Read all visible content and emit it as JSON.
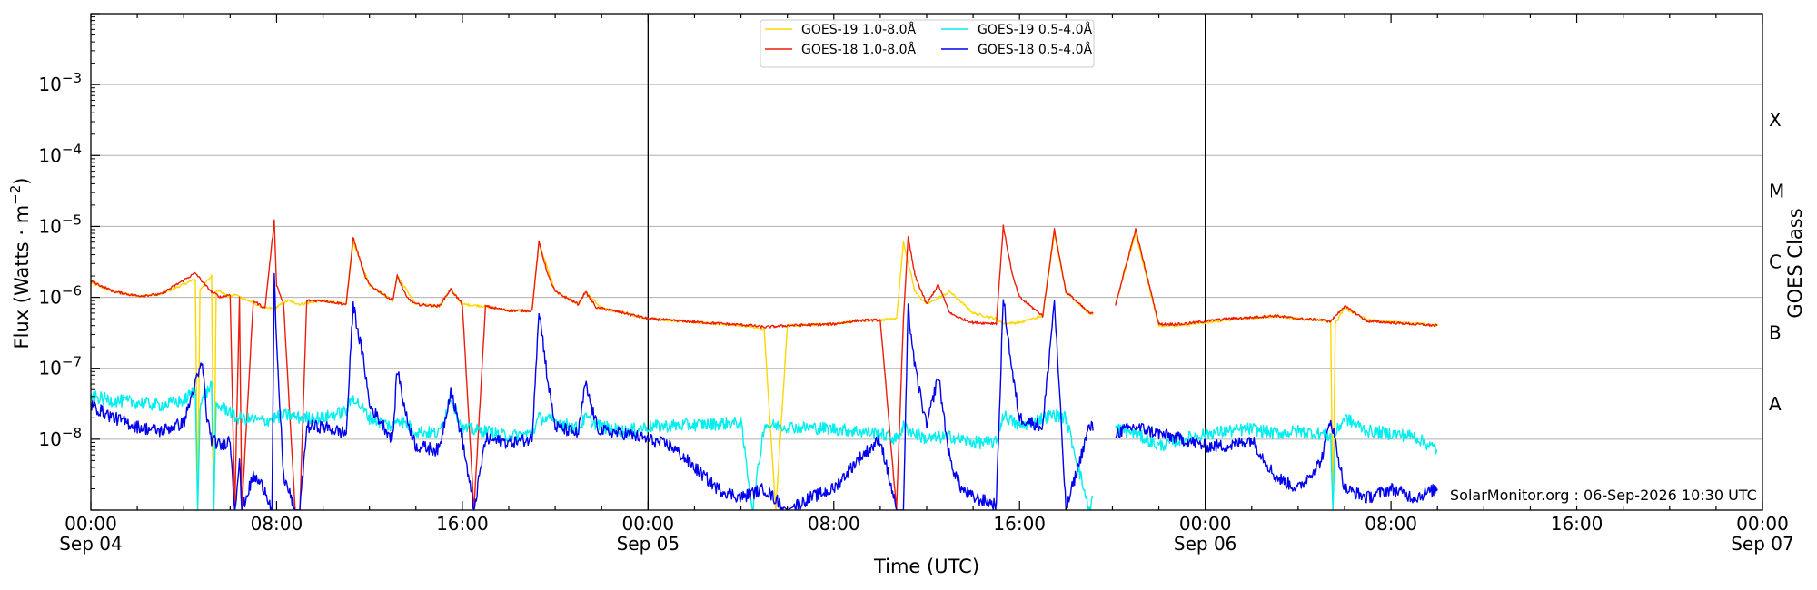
{
  "chart_data": {
    "type": "line",
    "title": "",
    "xlabel": "Time (UTC)",
    "ylabel": "Flux (Watts · m",
    "ylabel_exponent": "−2",
    "ylabel_close": ")",
    "right_axis_label": "GOES Class",
    "credit": "SolarMonitor.org : 06-Sep-2026 10:30 UTC",
    "x_range_hours": [
      0,
      72
    ],
    "ylim": [
      1e-09,
      0.01
    ],
    "y_scale": "log",
    "grid": "horizontal",
    "legend_position": "top-center",
    "x_ticks": [
      {
        "hour": 0,
        "line1": "00:00",
        "line2": "Sep 04"
      },
      {
        "hour": 8,
        "line1": "08:00",
        "line2": ""
      },
      {
        "hour": 16,
        "line1": "16:00",
        "line2": ""
      },
      {
        "hour": 24,
        "line1": "00:00",
        "line2": "Sep 05"
      },
      {
        "hour": 32,
        "line1": "08:00",
        "line2": ""
      },
      {
        "hour": 40,
        "line1": "16:00",
        "line2": ""
      },
      {
        "hour": 48,
        "line1": "00:00",
        "line2": "Sep 06"
      },
      {
        "hour": 56,
        "line1": "08:00",
        "line2": ""
      },
      {
        "hour": 64,
        "line1": "16:00",
        "line2": ""
      },
      {
        "hour": 72,
        "line1": "00:00",
        "line2": "Sep 07"
      }
    ],
    "y_ticks": [
      {
        "exp": -8,
        "label": "10",
        "sup": "−8"
      },
      {
        "exp": -7,
        "label": "10",
        "sup": "−7"
      },
      {
        "exp": -6,
        "label": "10",
        "sup": "−6"
      },
      {
        "exp": -5,
        "label": "10",
        "sup": "−5"
      },
      {
        "exp": -4,
        "label": "10",
        "sup": "−4"
      },
      {
        "exp": -3,
        "label": "10",
        "sup": "−3"
      }
    ],
    "day_boundaries_hours": [
      24,
      48
    ],
    "goes_classes": [
      {
        "label": "A",
        "exp": -7.5
      },
      {
        "label": "B",
        "exp": -6.5
      },
      {
        "label": "C",
        "exp": -5.5
      },
      {
        "label": "M",
        "exp": -4.5
      },
      {
        "label": "X",
        "exp": -3.5
      }
    ],
    "series": [
      {
        "name": "GOES-19 1.0-8.0Å",
        "color": "#ffd700",
        "band": "long",
        "x": [
          0,
          1,
          2,
          3,
          4.5,
          4.6,
          4.7,
          5.2,
          5.3,
          5.4,
          6,
          6.2,
          7.5,
          7.9,
          8.5,
          9,
          10,
          11,
          11.3,
          12,
          13,
          13.2,
          14,
          15,
          15.5,
          16,
          17,
          18,
          19,
          19.3,
          20,
          21,
          21.3,
          22,
          23,
          24,
          26,
          28,
          28.5,
          29,
          29.5,
          30,
          32,
          33,
          34,
          34.7,
          35,
          35.5,
          36,
          37,
          38,
          39,
          39.3,
          40,
          41,
          41.5,
          42,
          43,
          44,
          45,
          46,
          47,
          48,
          49,
          50,
          51,
          52,
          53,
          53.4,
          53.5,
          53.6,
          54,
          55,
          56,
          57,
          58
        ],
        "y": [
          1.6e-06,
          1.2e-06,
          1.05e-06,
          1.1e-06,
          1.8e-06,
          1e-09,
          1.3e-06,
          2e-06,
          1e-09,
          1.3e-06,
          1e-06,
          1.1e-06,
          7e-07,
          7e-07,
          9e-07,
          8e-07,
          9e-07,
          8e-07,
          6e-06,
          1.5e-06,
          9e-07,
          2e-06,
          8e-07,
          7.5e-07,
          1.3e-06,
          8e-07,
          7.5e-07,
          6.5e-07,
          6.5e-07,
          6e-06,
          1.2e-06,
          8e-07,
          1.2e-06,
          7e-07,
          6e-07,
          5e-07,
          4.5e-07,
          4e-07,
          3.8e-07,
          3.5e-07,
          1e-09,
          4e-07,
          4.2e-07,
          4.7e-07,
          4.8e-07,
          5e-07,
          6e-06,
          1.2e-06,
          8e-07,
          1.2e-06,
          6e-07,
          5e-07,
          4.3e-07,
          4.4e-07,
          5.5e-07,
          8e-06,
          1.2e-06,
          6e-07,
          5.5e-07,
          8e-06,
          4e-07,
          4e-07,
          4.4e-07,
          4.8e-07,
          5.1e-07,
          5.4e-07,
          5e-07,
          4.8e-07,
          4.5e-07,
          1e-09,
          4.3e-07,
          7e-07,
          4.8e-07,
          4.5e-07,
          4.3e-07,
          4e-07
        ],
        "gaps_hours": [
          [
            43.2,
            44.1
          ]
        ]
      },
      {
        "name": "GOES-18 1.0-8.0Å",
        "color": "#ee1c0b",
        "band": "long",
        "x": [
          0,
          1,
          2,
          3,
          4.5,
          5,
          5.2,
          5.6,
          6,
          6.2,
          6.4,
          6.5,
          7,
          7.5,
          7.9,
          8,
          8.3,
          8.8,
          9,
          9.3,
          10,
          11,
          11.3,
          11.8,
          12,
          13,
          13.2,
          13.6,
          14,
          15,
          15.5,
          16,
          16.5,
          17,
          18,
          19,
          19.3,
          19.7,
          20,
          21,
          21.3,
          21.8,
          22,
          23,
          24,
          26,
          28,
          28.5,
          29,
          29.5,
          30,
          32,
          33,
          34,
          34.7,
          35,
          35.2,
          35.5,
          36,
          36.5,
          37,
          37.5,
          38,
          39,
          39.3,
          39.7,
          40,
          41,
          41.5,
          42,
          43,
          44,
          45,
          46,
          47,
          48,
          49,
          50,
          51,
          52,
          53,
          53.4,
          54,
          55,
          56,
          57,
          58
        ],
        "y": [
          1.7e-06,
          1.2e-06,
          1.05e-06,
          1.1e-06,
          2.2e-06,
          1.4e-06,
          1.2e-06,
          1e-06,
          1.1e-06,
          1e-09,
          1e-06,
          1e-09,
          9e-07,
          7e-07,
          1.2e-05,
          1.5e-06,
          8e-07,
          1e-09,
          1e-09,
          9e-07,
          9e-07,
          8e-07,
          7e-06,
          2e-06,
          1.5e-06,
          9e-07,
          2e-06,
          1e-06,
          8e-07,
          7.5e-07,
          1.3e-06,
          8e-07,
          1e-09,
          7.5e-07,
          6.5e-07,
          6.5e-07,
          6e-06,
          2e-06,
          1.2e-06,
          8e-07,
          1.2e-06,
          7e-07,
          7e-07,
          6e-07,
          5e-07,
          4.5e-07,
          4.1e-07,
          4e-07,
          3.8e-07,
          3.9e-07,
          4e-07,
          4.2e-07,
          4.7e-07,
          4.8e-07,
          1e-09,
          5e-07,
          7e-06,
          2e-06,
          8e-07,
          1.5e-06,
          6e-07,
          5e-07,
          4.4e-07,
          4.3e-07,
          1e-05,
          2e-06,
          1e-06,
          5.5e-07,
          9e-06,
          1.2e-06,
          6e-07,
          5.5e-07,
          9e-06,
          4.2e-07,
          4.2e-07,
          4.6e-07,
          5e-07,
          5.2e-07,
          5.5e-07,
          5e-07,
          4.8e-07,
          4.6e-07,
          7.5e-07,
          4.6e-07,
          4.4e-07,
          4.2e-07,
          4e-07
        ],
        "gaps_hours": [
          [
            43.2,
            44.1
          ]
        ]
      },
      {
        "name": "GOES-19 0.5-4.0Å",
        "color": "#00eeee",
        "band": "short",
        "x": [
          0,
          1,
          2,
          3,
          4,
          4.5,
          4.6,
          4.7,
          5.2,
          5.3,
          5.4,
          6,
          6.2,
          7.5,
          7.9,
          8.5,
          9,
          10,
          11,
          11.3,
          12,
          13,
          13.2,
          14,
          15,
          15.5,
          16,
          17,
          18,
          19,
          19.3,
          20,
          21,
          21.3,
          22,
          23,
          24,
          26,
          28,
          28.5,
          29,
          30,
          32,
          33,
          34,
          34.7,
          35,
          35.5,
          36,
          37,
          38,
          39,
          39.3,
          40,
          41,
          41.5,
          42,
          43,
          44,
          45,
          46,
          47,
          48,
          49,
          50,
          51,
          52,
          53,
          53.4,
          53.5,
          53.6,
          54,
          55,
          56,
          57,
          58
        ],
        "y": [
          4e-08,
          3.5e-08,
          3.3e-08,
          3e-08,
          3.5e-08,
          5e-08,
          1e-09,
          3e-08,
          6e-08,
          1e-09,
          3e-08,
          2.5e-08,
          2e-08,
          1.8e-08,
          2e-08,
          2.2e-08,
          2e-08,
          2e-08,
          2.5e-08,
          4e-08,
          2e-08,
          1.5e-08,
          2e-08,
          1.3e-08,
          1.2e-08,
          4e-08,
          1.4e-08,
          1.3e-08,
          1.1e-08,
          1.2e-08,
          2e-08,
          1.8e-08,
          1.4e-08,
          2e-08,
          1.5e-08,
          1.3e-08,
          1.5e-08,
          1.6e-08,
          1.7e-08,
          1e-09,
          1.6e-08,
          1.5e-08,
          1.4e-08,
          1.3e-08,
          1.2e-08,
          1e-08,
          1.5e-08,
          1.2e-08,
          1e-08,
          1.1e-08,
          9e-09,
          9e-09,
          2.2e-08,
          1.5e-08,
          2e-08,
          2.2e-08,
          2e-08,
          1e-09,
          1.5e-08,
          1.2e-08,
          8e-09,
          1e-08,
          1.2e-08,
          1.3e-08,
          1.4e-08,
          1.2e-08,
          1.3e-08,
          1.2e-08,
          1.1e-08,
          1e-09,
          1.2e-08,
          2e-08,
          1.3e-08,
          1.2e-08,
          1.1e-08,
          7e-09
        ],
        "gaps_hours": [
          [
            43.2,
            44.1
          ]
        ]
      },
      {
        "name": "GOES-18 0.5-4.0Å",
        "color": "#0000ee",
        "band": "short",
        "x": [
          0,
          1,
          2,
          3,
          4,
          4.5,
          4.8,
          5,
          5.2,
          5.6,
          6,
          6.2,
          6.4,
          6.5,
          7,
          7.5,
          7.8,
          7.9,
          8,
          8.3,
          8.8,
          9,
          9.3,
          10,
          11,
          11.3,
          11.8,
          12,
          13,
          13.2,
          13.6,
          14,
          15,
          15.5,
          16,
          16.5,
          17,
          18,
          19,
          19.3,
          19.7,
          20,
          21,
          21.3,
          21.8,
          22,
          23,
          24,
          25,
          26,
          27,
          28,
          29,
          30,
          31,
          32,
          33,
          34,
          34.7,
          35,
          35.2,
          35.5,
          36,
          36.5,
          37,
          37.5,
          38,
          39,
          39.3,
          39.7,
          40,
          41,
          41.5,
          42,
          43,
          44,
          45,
          46,
          47,
          48,
          49,
          50,
          51,
          52,
          53,
          53.4,
          54,
          55,
          56,
          57,
          58
        ],
        "y": [
          3e-08,
          2e-08,
          1.5e-08,
          1.3e-08,
          1.7e-08,
          6e-08,
          1.2e-07,
          2e-08,
          1e-08,
          8e-09,
          1e-08,
          1e-09,
          5e-09,
          1e-09,
          3e-09,
          2e-09,
          1e-09,
          2e-06,
          2e-07,
          3e-09,
          1e-09,
          1e-09,
          1.5e-08,
          1.5e-08,
          1.2e-08,
          8e-07,
          1e-07,
          3e-08,
          1e-08,
          1e-07,
          2e-08,
          8e-09,
          7e-09,
          5e-08,
          1e-08,
          1e-09,
          1e-08,
          9e-09,
          1e-08,
          7e-07,
          6e-08,
          1.5e-08,
          1.2e-08,
          6e-08,
          1.5e-08,
          1.3e-08,
          1.2e-08,
          1e-08,
          8e-09,
          4e-09,
          2e-09,
          1.5e-09,
          2e-09,
          1e-09,
          1.5e-09,
          2e-09,
          5e-09,
          1e-08,
          1e-09,
          1e-09,
          7e-07,
          1e-07,
          1.5e-08,
          8e-08,
          5e-09,
          2e-09,
          1.5e-09,
          1.2e-09,
          1e-06,
          8e-08,
          2e-08,
          1.5e-08,
          9e-07,
          1e-09,
          1.5e-08,
          1.2e-08,
          1.5e-08,
          1.2e-08,
          1e-08,
          8e-09,
          8e-09,
          1e-08,
          3e-09,
          2e-09,
          5e-09,
          2e-08,
          2e-09,
          1.5e-09,
          2e-09,
          1.5e-09,
          2e-09
        ],
        "gaps_hours": [
          [
            43.2,
            44.1
          ]
        ]
      }
    ]
  }
}
